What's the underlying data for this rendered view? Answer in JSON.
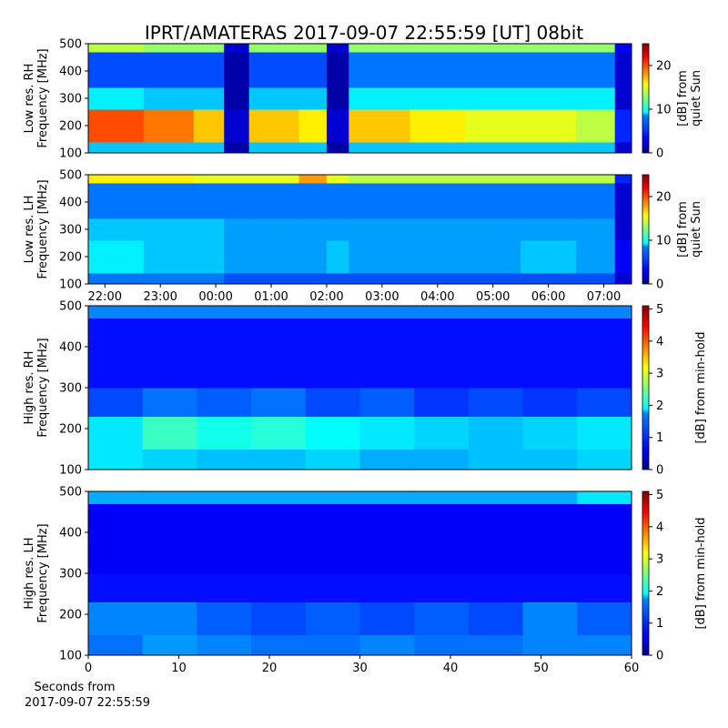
{
  "chart_data": [
    {
      "type": "heatmap",
      "title": "IPRT/AMATERAS 2017-09-07 22:55:59 [UT]   08bit",
      "ylabel": [
        "Low res. RH",
        "Frequency [MHz]"
      ],
      "xlim": [
        21.7,
        31.5
      ],
      "ylim": [
        100,
        500
      ],
      "yticks": [
        100,
        200,
        300,
        400,
        500
      ],
      "x": [
        21.7,
        22.7,
        23.6,
        24.15,
        24.6,
        25.5,
        26.0,
        26.4,
        27.5,
        28.5,
        29.5,
        30.5,
        31.2,
        31.5
      ],
      "y": [
        100,
        140,
        260,
        340,
        470,
        500
      ],
      "z": [
        [
          8,
          8,
          8,
          1,
          8,
          8,
          1,
          8,
          8,
          8,
          8,
          8,
          2
        ],
        [
          20,
          19,
          17,
          2,
          17,
          16,
          2,
          17,
          16,
          15,
          15,
          14,
          4
        ],
        [
          9,
          8,
          8,
          1,
          8,
          8,
          1,
          9,
          9,
          9,
          9,
          9,
          2
        ],
        [
          5,
          5,
          5,
          1,
          5,
          5,
          1,
          6,
          6,
          6,
          6,
          6,
          2
        ],
        [
          14,
          13,
          13,
          2,
          13,
          13,
          2,
          13,
          13,
          13,
          13,
          13,
          3
        ]
      ],
      "colorbar": {
        "label": [
          "[dB] from",
          "quiet Sun"
        ],
        "lim": [
          0,
          25
        ],
        "ticks": [
          0,
          10,
          20
        ]
      }
    },
    {
      "type": "heatmap",
      "ylabel": [
        "Low res. LH",
        "Frequency [MHz]"
      ],
      "xlim": [
        21.7,
        31.5
      ],
      "ylim": [
        100,
        500
      ],
      "yticks": [
        100,
        200,
        300,
        400,
        500
      ],
      "xticks": [
        {
          "value": 22,
          "label": "22:00"
        },
        {
          "value": 23,
          "label": "23:00"
        },
        {
          "value": 24,
          "label": "00:00"
        },
        {
          "value": 25,
          "label": "01:00"
        },
        {
          "value": 26,
          "label": "02:00"
        },
        {
          "value": 27,
          "label": "03:00"
        },
        {
          "value": 28,
          "label": "04:00"
        },
        {
          "value": 29,
          "label": "05:00"
        },
        {
          "value": 30,
          "label": "06:00"
        },
        {
          "value": 31,
          "label": "07:00"
        }
      ],
      "x": [
        21.7,
        22.7,
        23.6,
        24.15,
        24.6,
        25.5,
        26.0,
        26.4,
        27.5,
        28.5,
        29.5,
        30.5,
        31.2,
        31.5
      ],
      "y": [
        100,
        140,
        260,
        340,
        470,
        500
      ],
      "z": [
        [
          6,
          6,
          6,
          5,
          5,
          5,
          5,
          5,
          5,
          5,
          5,
          5,
          2
        ],
        [
          9,
          8,
          8,
          7,
          7,
          7,
          8,
          7,
          7,
          7,
          8,
          7,
          3
        ],
        [
          8,
          8,
          8,
          7,
          7,
          7,
          7,
          7,
          7,
          7,
          7,
          7,
          2
        ],
        [
          6,
          6,
          6,
          6,
          6,
          6,
          6,
          6,
          6,
          6,
          6,
          6,
          2
        ],
        [
          16,
          16,
          15,
          15,
          15,
          18,
          15,
          14,
          14,
          14,
          14,
          14,
          4
        ]
      ],
      "colorbar": {
        "label": [
          "[dB] from",
          "quiet Sun"
        ],
        "lim": [
          0,
          25
        ],
        "ticks": [
          0,
          10,
          20
        ]
      }
    },
    {
      "type": "heatmap",
      "ylabel": [
        "High res. RH",
        "Frequency [MHz]"
      ],
      "xlim": [
        0,
        60
      ],
      "ylim": [
        100,
        500
      ],
      "yticks": [
        100,
        200,
        300,
        400,
        500
      ],
      "x": [
        0,
        6,
        12,
        18,
        24,
        30,
        36,
        42,
        48,
        54,
        60
      ],
      "y": [
        100,
        150,
        230,
        300,
        470,
        500
      ],
      "z": [
        [
          1.8,
          1.7,
          1.6,
          1.6,
          1.7,
          1.5,
          1.5,
          1.6,
          1.6,
          1.7
        ],
        [
          1.8,
          2.2,
          2.0,
          2.1,
          1.9,
          1.8,
          1.7,
          1.6,
          1.7,
          1.8
        ],
        [
          1.0,
          1.2,
          1.1,
          1.2,
          1.0,
          1.1,
          0.9,
          1.0,
          0.9,
          1.0
        ],
        [
          0.7,
          0.7,
          0.7,
          0.7,
          0.7,
          0.7,
          0.7,
          0.7,
          0.7,
          0.7
        ],
        [
          1.3,
          1.3,
          1.3,
          1.3,
          1.3,
          1.3,
          1.3,
          1.3,
          1.3,
          1.3
        ]
      ],
      "colorbar": {
        "label": [
          "[dB] from min-hold"
        ],
        "lim": [
          0,
          5.1
        ],
        "ticks": [
          0,
          1,
          2,
          3,
          4,
          5
        ]
      }
    },
    {
      "type": "heatmap",
      "ylabel": [
        "High res. LH",
        "Frequency [MHz]"
      ],
      "xlabel": [
        "Seconds from",
        "2017-09-07 22:55:59"
      ],
      "xlim": [
        0,
        60
      ],
      "ylim": [
        100,
        500
      ],
      "yticks": [
        100,
        200,
        300,
        400,
        500
      ],
      "xticks": [
        0,
        10,
        20,
        30,
        40,
        50,
        60
      ],
      "x": [
        0,
        6,
        12,
        18,
        24,
        30,
        36,
        42,
        48,
        54,
        60
      ],
      "y": [
        100,
        150,
        230,
        300,
        470,
        500
      ],
      "z": [
        [
          1.2,
          1.4,
          1.3,
          1.2,
          1.2,
          1.3,
          1.2,
          1.2,
          1.3,
          1.3
        ],
        [
          1.3,
          1.3,
          1.1,
          1.0,
          1.1,
          1.0,
          1.1,
          1.0,
          1.3,
          1.1
        ],
        [
          0.7,
          0.7,
          0.7,
          0.7,
          0.7,
          0.7,
          0.7,
          0.7,
          0.7,
          0.7
        ],
        [
          0.6,
          0.6,
          0.6,
          0.6,
          0.6,
          0.6,
          0.6,
          0.6,
          0.6,
          0.6
        ],
        [
          1.5,
          1.5,
          1.5,
          1.5,
          1.5,
          1.5,
          1.5,
          1.5,
          1.5,
          1.8
        ]
      ],
      "colorbar": {
        "label": [
          "[dB] from min-hold"
        ],
        "lim": [
          0,
          5.1
        ],
        "ticks": [
          0,
          1,
          2,
          3,
          4,
          5
        ]
      }
    }
  ]
}
